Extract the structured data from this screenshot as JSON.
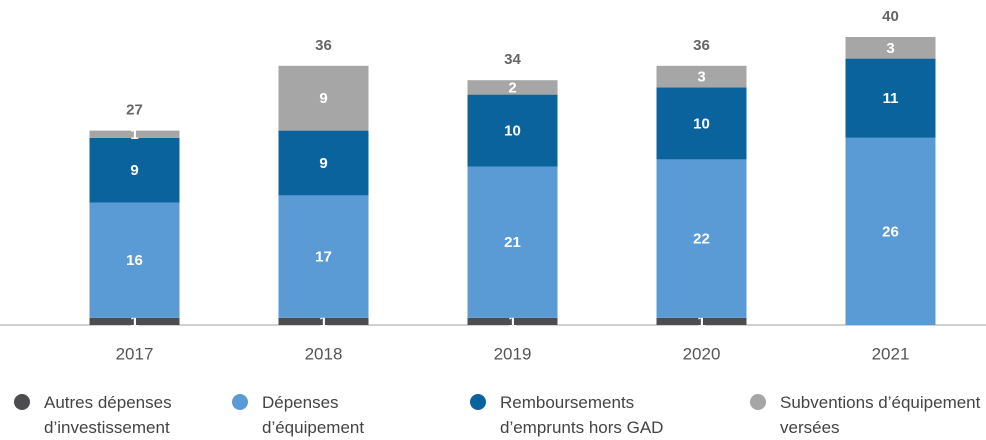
{
  "chart_data": {
    "type": "stacked_bar",
    "categories": [
      "2017",
      "2018",
      "2019",
      "2020",
      "2021"
    ],
    "series": [
      {
        "name": "Autres dépenses d’investissement",
        "color": "#4d4d4f",
        "values": [
          1,
          1,
          1,
          1,
          null
        ]
      },
      {
        "name": "Dépenses d’équipement",
        "color": "#5b9bd5",
        "values": [
          16,
          17,
          21,
          22,
          26
        ]
      },
      {
        "name": "Remboursements d’emprunts hors GAD",
        "color": "#0b639d",
        "values": [
          9,
          9,
          10,
          10,
          11
        ]
      },
      {
        "name": "Subventions d’équipement versées",
        "color": "#a6a6a6",
        "values": [
          1,
          9,
          2,
          3,
          3
        ]
      }
    ],
    "totals": [
      27,
      36,
      34,
      36,
      40
    ],
    "ylim": [
      0,
      45
    ]
  }
}
